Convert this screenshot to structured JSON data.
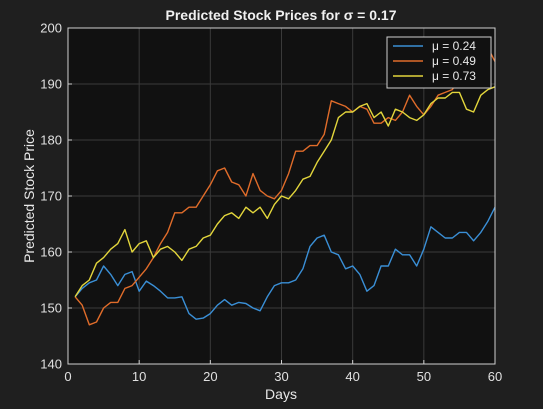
{
  "chart_data": {
    "type": "line",
    "title": "Predicted Stock Prices for σ = 0.17",
    "xlabel": "Days",
    "ylabel": "Predicted Stock Price",
    "xlim": [
      0,
      60
    ],
    "ylim": [
      140,
      200
    ],
    "xticks": [
      0,
      10,
      20,
      30,
      40,
      50,
      60
    ],
    "yticks": [
      140,
      150,
      160,
      170,
      180,
      190,
      200
    ],
    "grid": true,
    "legend_position": "top-right",
    "series": [
      {
        "name": "μ = 0.24",
        "color": "#3a8fd6",
        "x": [
          1,
          2,
          3,
          4,
          5,
          6,
          7,
          8,
          9,
          10,
          11,
          12,
          13,
          14,
          15,
          16,
          17,
          18,
          19,
          20,
          21,
          22,
          23,
          24,
          25,
          26,
          27,
          28,
          29,
          30,
          31,
          32,
          33,
          34,
          35,
          36,
          37,
          38,
          39,
          40,
          41,
          42,
          43,
          44,
          45,
          46,
          47,
          48,
          49,
          50,
          51,
          52,
          53,
          54,
          55,
          56,
          57,
          58,
          59,
          60
        ],
        "values": [
          152,
          153.5,
          154.5,
          155,
          157.5,
          156,
          154,
          156,
          156.5,
          153,
          154.8,
          154,
          153,
          151.8,
          151.8,
          152,
          149,
          148,
          148.2,
          149,
          150.5,
          151.5,
          150.5,
          151,
          150.8,
          150,
          149.5,
          152,
          154,
          154.5,
          154.5,
          155,
          157,
          161,
          162.5,
          163,
          160,
          159.5,
          157,
          157.5,
          156,
          153,
          154,
          157.5,
          157.5,
          160.5,
          159.5,
          159.5,
          157.5,
          160.5,
          164.5,
          163.5,
          162.5,
          162.5,
          163.5,
          163.5,
          162,
          163.5,
          165.5,
          168
        ]
      },
      {
        "name": "μ = 0.49",
        "color": "#e06c2a",
        "x": [
          1,
          2,
          3,
          4,
          5,
          6,
          7,
          8,
          9,
          10,
          11,
          12,
          13,
          14,
          15,
          16,
          17,
          18,
          19,
          20,
          21,
          22,
          23,
          24,
          25,
          26,
          27,
          28,
          29,
          30,
          31,
          32,
          33,
          34,
          35,
          36,
          37,
          38,
          39,
          40,
          41,
          42,
          43,
          44,
          45,
          46,
          47,
          48,
          49,
          50,
          51,
          52,
          53,
          54,
          55,
          56,
          57,
          58,
          59,
          60
        ],
        "values": [
          152,
          150.5,
          147,
          147.5,
          150,
          151,
          151,
          153.5,
          154,
          155.5,
          157,
          159,
          161.5,
          163.5,
          167,
          167,
          168,
          168,
          170,
          172,
          174.5,
          175,
          172.5,
          172,
          170,
          174,
          171,
          170,
          169.5,
          171,
          174,
          178,
          178,
          179,
          179,
          181,
          187,
          186.5,
          186,
          185,
          186,
          185.5,
          183,
          183,
          184,
          183.5,
          185,
          188,
          186,
          184.5,
          186,
          188,
          188.5,
          189,
          191,
          190,
          192.5,
          192,
          196.5,
          194
        ]
      },
      {
        "name": "μ = 0.73",
        "color": "#e3d63c",
        "x": [
          1,
          2,
          3,
          4,
          5,
          6,
          7,
          8,
          9,
          10,
          11,
          12,
          13,
          14,
          15,
          16,
          17,
          18,
          19,
          20,
          21,
          22,
          23,
          24,
          25,
          26,
          27,
          28,
          29,
          30,
          31,
          32,
          33,
          34,
          35,
          36,
          37,
          38,
          39,
          40,
          41,
          42,
          43,
          44,
          45,
          46,
          47,
          48,
          49,
          50,
          51,
          52,
          53,
          54,
          55,
          56,
          57,
          58,
          59,
          60
        ],
        "values": [
          152,
          154,
          155,
          158,
          159,
          160.5,
          161.5,
          164,
          160,
          161.5,
          162,
          159,
          160.5,
          161,
          160,
          158.5,
          160.5,
          161,
          162.5,
          163,
          165,
          166.5,
          167,
          166,
          168,
          167,
          168,
          166,
          168.5,
          170,
          169.5,
          171,
          173,
          173.5,
          176,
          178,
          180,
          184,
          185,
          185,
          186,
          186.5,
          184,
          185,
          182.5,
          185.5,
          185,
          184,
          183.5,
          184.5,
          186.5,
          187.5,
          187.5,
          188.5,
          188.5,
          185.5,
          185,
          188,
          189,
          189.5
        ]
      }
    ]
  }
}
